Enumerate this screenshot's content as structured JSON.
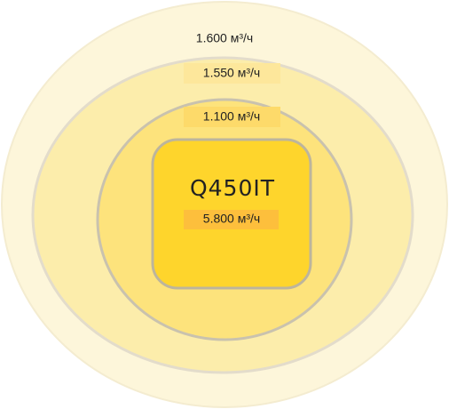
{
  "zones": [
    {
      "label": "1.600 м³/ч"
    },
    {
      "label": "1.550 м³/ч"
    },
    {
      "label": "1.100 м³/ч"
    }
  ],
  "device": {
    "name": "Q450IT",
    "label": "5.800 м³/ч"
  }
}
